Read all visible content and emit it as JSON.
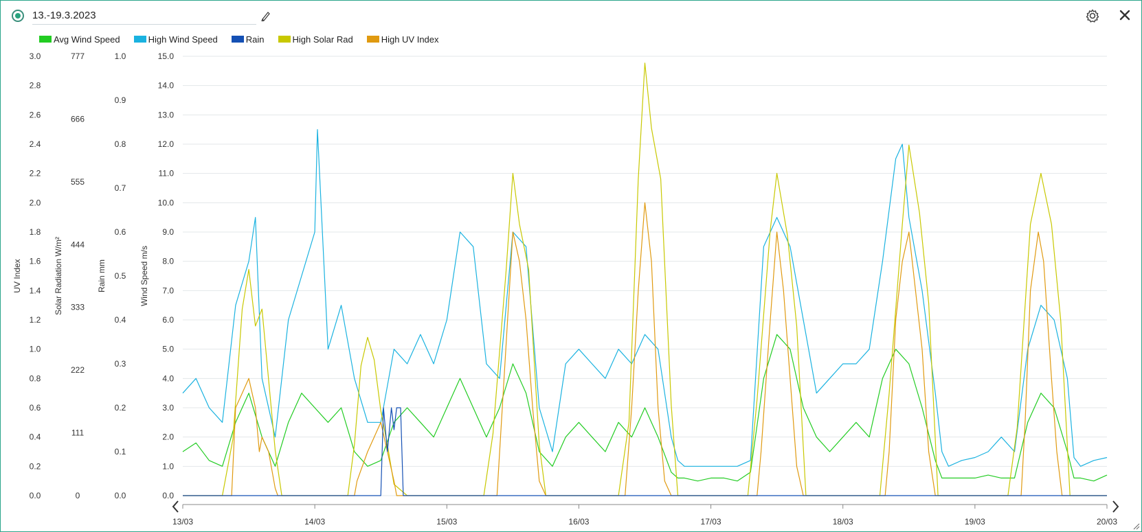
{
  "header": {
    "title": "13.-19.3.2023",
    "record_icon": "record-icon",
    "edit_icon": "pencil-icon",
    "settings_icon": "gear-icon",
    "close_icon": "close-icon"
  },
  "legend": [
    {
      "name": "Avg Wind Speed",
      "color": "#22cc22"
    },
    {
      "name": "High Wind Speed",
      "color": "#1ab2e0"
    },
    {
      "name": "Rain",
      "color": "#1450b4"
    },
    {
      "name": "High Solar Rad",
      "color": "#c8c800"
    },
    {
      "name": "High UV Index",
      "color": "#e09a10"
    }
  ],
  "nav": {
    "prev_icon": "chevron-left-icon",
    "next_icon": "chevron-right-icon"
  },
  "chart_data": {
    "type": "line",
    "title": "",
    "x_labels": [
      "13/03",
      "14/03",
      "15/03",
      "16/03",
      "17/03",
      "18/03",
      "19/03",
      "20/03"
    ],
    "xlim": [
      "13/03",
      "20/03"
    ],
    "grid": "horizontal",
    "legend_position": "top-left",
    "axes": [
      {
        "label": "UV Index",
        "ticks": [
          "0.0",
          "0.2",
          "0.4",
          "0.6",
          "0.8",
          "1.0",
          "1.2",
          "1.4",
          "1.6",
          "1.8",
          "2.0",
          "2.2",
          "2.4",
          "2.6",
          "2.8",
          "3.0"
        ],
        "ylim": [
          0,
          3.0
        ]
      },
      {
        "label": "Solar Radiation W/m²",
        "ticks": [
          "0",
          "111",
          "222",
          "333",
          "444",
          "555",
          "666",
          "777"
        ],
        "ylim": [
          0,
          777
        ]
      },
      {
        "label": "Rain mm",
        "ticks": [
          "0.0",
          "0.1",
          "0.2",
          "0.3",
          "0.4",
          "0.5",
          "0.6",
          "0.7",
          "0.8",
          "0.9",
          "1.0"
        ],
        "ylim": [
          0,
          1.0
        ]
      },
      {
        "label": "Wind Speed m/s",
        "ticks": [
          "0.0",
          "1.0",
          "2.0",
          "3.0",
          "4.0",
          "5.0",
          "6.0",
          "7.0",
          "8.0",
          "9.0",
          "10.0",
          "11.0",
          "12.0",
          "13.0",
          "14.0",
          "15.0"
        ],
        "ylim": [
          0,
          15.0
        ]
      }
    ],
    "series": [
      {
        "name": "High Wind Speed",
        "axis": "Wind Speed m/s",
        "color": "#1ab2e0",
        "x": [
          13.0,
          13.1,
          13.2,
          13.3,
          13.4,
          13.5,
          13.55,
          13.6,
          13.7,
          13.8,
          13.9,
          14.0,
          14.02,
          14.1,
          14.2,
          14.3,
          14.4,
          14.5,
          14.6,
          14.7,
          14.8,
          14.9,
          15.0,
          15.1,
          15.2,
          15.3,
          15.4,
          15.5,
          15.6,
          15.7,
          15.8,
          15.9,
          16.0,
          16.1,
          16.2,
          16.3,
          16.4,
          16.5,
          16.6,
          16.7,
          16.75,
          16.8,
          16.9,
          17.0,
          17.1,
          17.2,
          17.3,
          17.4,
          17.5,
          17.6,
          17.7,
          17.8,
          17.9,
          18.0,
          18.1,
          18.2,
          18.3,
          18.4,
          18.45,
          18.5,
          18.6,
          18.7,
          18.75,
          18.8,
          18.9,
          19.0,
          19.1,
          19.2,
          19.3,
          19.4,
          19.5,
          19.6,
          19.7,
          19.75,
          19.8,
          19.9,
          20.0
        ],
        "y": [
          3.5,
          4.0,
          3.0,
          2.5,
          6.5,
          8.0,
          9.5,
          4.0,
          2.0,
          6.0,
          7.5,
          9.0,
          12.5,
          5.0,
          6.5,
          4.0,
          2.5,
          2.5,
          5.0,
          4.5,
          5.5,
          4.5,
          6.0,
          9.0,
          8.5,
          4.5,
          4.0,
          9.0,
          8.5,
          3.0,
          1.5,
          4.5,
          5.0,
          4.5,
          4.0,
          5.0,
          4.5,
          5.5,
          5.0,
          2.0,
          1.2,
          1.0,
          1.0,
          1.0,
          1.0,
          1.0,
          1.2,
          8.5,
          9.5,
          8.5,
          6.0,
          3.5,
          4.0,
          4.5,
          4.5,
          5.0,
          8.0,
          11.5,
          12.0,
          9.5,
          7.0,
          3.5,
          1.5,
          1.0,
          1.2,
          1.3,
          1.5,
          2.0,
          1.5,
          5.0,
          6.5,
          6.0,
          4.0,
          1.3,
          1.0,
          1.2,
          1.3
        ]
      },
      {
        "name": "Avg Wind Speed",
        "axis": "Wind Speed m/s",
        "color": "#22cc22",
        "x": [
          13.0,
          13.1,
          13.2,
          13.3,
          13.4,
          13.5,
          13.6,
          13.7,
          13.8,
          13.9,
          14.0,
          14.1,
          14.2,
          14.3,
          14.4,
          14.5,
          14.6,
          14.7,
          14.8,
          14.9,
          15.0,
          15.1,
          15.2,
          15.3,
          15.4,
          15.5,
          15.6,
          15.7,
          15.8,
          15.9,
          16.0,
          16.1,
          16.2,
          16.3,
          16.4,
          16.5,
          16.6,
          16.7,
          16.75,
          16.8,
          16.9,
          17.0,
          17.1,
          17.2,
          17.3,
          17.4,
          17.5,
          17.6,
          17.7,
          17.8,
          17.9,
          18.0,
          18.1,
          18.2,
          18.3,
          18.4,
          18.5,
          18.6,
          18.7,
          18.75,
          18.8,
          18.9,
          19.0,
          19.1,
          19.2,
          19.3,
          19.4,
          19.5,
          19.6,
          19.7,
          19.75,
          19.8,
          19.9,
          20.0
        ],
        "y": [
          1.5,
          1.8,
          1.2,
          1.0,
          2.5,
          3.5,
          2.0,
          1.0,
          2.5,
          3.5,
          3.0,
          2.5,
          3.0,
          1.5,
          1.0,
          1.2,
          2.5,
          3.0,
          2.5,
          2.0,
          3.0,
          4.0,
          3.0,
          2.0,
          3.0,
          4.5,
          3.5,
          1.5,
          1.0,
          2.0,
          2.5,
          2.0,
          1.5,
          2.5,
          2.0,
          3.0,
          2.0,
          0.8,
          0.6,
          0.6,
          0.5,
          0.6,
          0.6,
          0.5,
          0.8,
          4.0,
          5.5,
          5.0,
          3.0,
          2.0,
          1.5,
          2.0,
          2.5,
          2.0,
          4.0,
          5.0,
          4.5,
          3.0,
          1.2,
          0.6,
          0.6,
          0.6,
          0.6,
          0.7,
          0.6,
          0.6,
          2.5,
          3.5,
          3.0,
          1.5,
          0.6,
          0.6,
          0.5,
          0.7
        ]
      },
      {
        "name": "High Solar Rad",
        "axis": "Solar Radiation W/m²",
        "color": "#c8c800",
        "x": [
          13.0,
          13.3,
          13.38,
          13.45,
          13.5,
          13.55,
          13.6,
          13.7,
          13.75,
          14.0,
          14.25,
          14.3,
          14.35,
          14.4,
          14.45,
          14.5,
          14.55,
          14.6,
          14.7,
          15.0,
          15.28,
          15.35,
          15.45,
          15.5,
          15.55,
          15.62,
          15.7,
          15.75,
          16.0,
          16.3,
          16.38,
          16.45,
          16.5,
          16.55,
          16.62,
          16.7,
          16.75,
          17.0,
          17.28,
          17.35,
          17.45,
          17.5,
          17.58,
          17.65,
          17.72,
          18.0,
          18.28,
          18.35,
          18.45,
          18.5,
          18.58,
          18.65,
          18.72,
          19.0,
          19.25,
          19.32,
          19.42,
          19.5,
          19.58,
          19.65,
          19.72,
          20.0
        ],
        "y": [
          0,
          0,
          100,
          330,
          400,
          300,
          330,
          80,
          0,
          0,
          0,
          90,
          230,
          280,
          240,
          150,
          90,
          20,
          0,
          0,
          0,
          110,
          400,
          570,
          480,
          400,
          90,
          0,
          0,
          0,
          130,
          560,
          765,
          650,
          560,
          160,
          0,
          0,
          0,
          170,
          470,
          570,
          460,
          300,
          0,
          0,
          0,
          180,
          480,
          620,
          500,
          340,
          0,
          0,
          0,
          120,
          480,
          570,
          480,
          310,
          0,
          0
        ]
      },
      {
        "name": "High UV Index",
        "axis": "UV Index",
        "color": "#e09a10",
        "x": [
          13.0,
          13.37,
          13.4,
          13.45,
          13.5,
          13.55,
          13.58,
          13.6,
          13.65,
          13.7,
          13.72,
          14.0,
          14.3,
          14.32,
          14.4,
          14.45,
          14.5,
          14.55,
          14.6,
          14.62,
          15.0,
          15.38,
          15.42,
          15.5,
          15.55,
          15.6,
          15.65,
          15.7,
          15.75,
          16.0,
          16.35,
          16.4,
          16.45,
          16.5,
          16.55,
          16.6,
          16.65,
          16.7,
          17.0,
          17.35,
          17.38,
          17.45,
          17.5,
          17.55,
          17.6,
          17.65,
          17.7,
          18.0,
          18.32,
          18.35,
          18.4,
          18.45,
          18.5,
          18.55,
          18.6,
          18.65,
          18.7,
          19.0,
          19.35,
          19.38,
          19.42,
          19.48,
          19.52,
          19.58,
          19.62,
          19.66,
          20.0
        ],
        "y": [
          0,
          0,
          0.6,
          0.7,
          0.8,
          0.6,
          0.3,
          0.4,
          0.3,
          0.05,
          0,
          0,
          0,
          0.1,
          0.3,
          0.4,
          0.5,
          0.3,
          0.1,
          0,
          0,
          0,
          0.6,
          1.8,
          1.6,
          1.2,
          0.6,
          0.1,
          0,
          0,
          0,
          0.6,
          1.4,
          2.0,
          1.6,
          0.6,
          0.1,
          0,
          0,
          0,
          0.3,
          1.2,
          1.8,
          1.4,
          0.8,
          0.2,
          0,
          0,
          0,
          0.3,
          1.2,
          1.6,
          1.8,
          1.4,
          1.0,
          0.3,
          0,
          0,
          0,
          0.5,
          1.4,
          1.8,
          1.6,
          0.8,
          0.3,
          0,
          0
        ]
      },
      {
        "name": "Rain",
        "axis": "Rain mm",
        "color": "#1450b4",
        "x": [
          13.0,
          14.5,
          14.52,
          14.55,
          14.58,
          14.6,
          14.62,
          14.65,
          14.67,
          20.0
        ],
        "y": [
          0,
          0,
          0.2,
          0.1,
          0.2,
          0.15,
          0.2,
          0.2,
          0,
          0
        ]
      }
    ]
  }
}
